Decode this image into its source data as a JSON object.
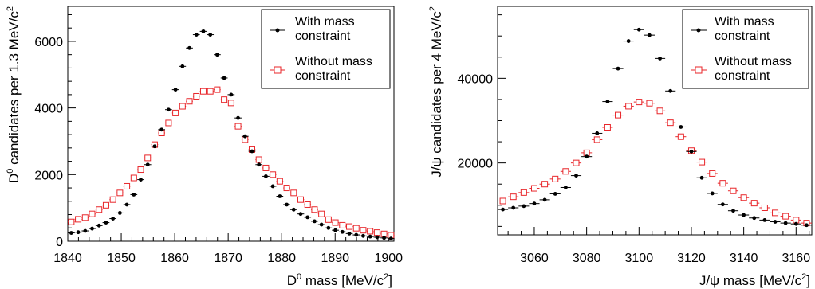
{
  "chart_data": [
    {
      "type": "scatter",
      "xlabel_main": "D",
      "xlabel_sup": "0",
      "xlabel_rest": " mass [MeV/c",
      "xlabel_sup2": "2",
      "xlabel_end": "]",
      "ylabel_main": "D",
      "ylabel_sup": "0",
      "ylabel_rest": " candidates per 1.3 MeV/c",
      "ylabel_sup2": "2",
      "xlim": [
        1840,
        1901
      ],
      "ylim": [
        0,
        7050
      ],
      "xticks": [
        1840,
        1850,
        1860,
        1870,
        1880,
        1890,
        1900
      ],
      "xtick_labels": [
        "1840",
        "1850",
        "1860",
        "1870",
        "1880",
        "1890",
        "1900"
      ],
      "yticks": [
        0,
        2000,
        4000,
        6000
      ],
      "ytick_labels": [
        "0",
        "2000",
        "4000",
        "6000"
      ],
      "legend_placement": "top-right",
      "legend": [
        {
          "line1": "With mass",
          "line2": "constraint"
        },
        {
          "line1": "Without mass",
          "line2": "constraint"
        }
      ],
      "series": [
        {
          "marker": "filled-circle",
          "color": "#000000",
          "x": [
            1840.65,
            1841.95,
            1843.25,
            1844.55,
            1845.85,
            1847.15,
            1848.45,
            1849.75,
            1851.05,
            1852.35,
            1853.65,
            1854.95,
            1856.25,
            1857.55,
            1858.85,
            1860.15,
            1861.45,
            1862.75,
            1864.05,
            1865.35,
            1866.65,
            1867.95,
            1869.25,
            1870.55,
            1871.85,
            1873.15,
            1874.45,
            1875.75,
            1877.05,
            1878.35,
            1879.65,
            1880.95,
            1882.25,
            1883.55,
            1884.85,
            1886.15,
            1887.45,
            1888.75,
            1890.05,
            1891.35,
            1892.65,
            1893.95,
            1895.25,
            1896.55,
            1897.85,
            1899.15,
            1900.45
          ],
          "y": [
            250,
            270,
            310,
            380,
            470,
            560,
            680,
            850,
            1100,
            1400,
            1850,
            2300,
            2850,
            3350,
            3950,
            4550,
            5250,
            5800,
            6200,
            6300,
            6200,
            5600,
            4900,
            4400,
            3700,
            3150,
            2700,
            2300,
            1950,
            1650,
            1350,
            1100,
            950,
            820,
            720,
            600,
            500,
            400,
            330,
            280,
            230,
            190,
            160,
            140,
            120,
            100,
            80
          ]
        },
        {
          "marker": "open-square",
          "color": "#e8262a",
          "x": [
            1840.65,
            1841.95,
            1843.25,
            1844.55,
            1845.85,
            1847.15,
            1848.45,
            1849.75,
            1851.05,
            1852.35,
            1853.65,
            1854.95,
            1856.25,
            1857.55,
            1858.85,
            1860.15,
            1861.45,
            1862.75,
            1864.05,
            1865.35,
            1866.65,
            1867.95,
            1869.25,
            1870.55,
            1871.85,
            1873.15,
            1874.45,
            1875.75,
            1877.05,
            1878.35,
            1879.65,
            1880.95,
            1882.25,
            1883.55,
            1884.85,
            1886.15,
            1887.45,
            1888.75,
            1890.05,
            1891.35,
            1892.65,
            1893.95,
            1895.25,
            1896.55,
            1897.85,
            1899.15,
            1900.45
          ],
          "y": [
            580,
            660,
            710,
            820,
            950,
            1080,
            1250,
            1450,
            1650,
            1900,
            2150,
            2500,
            2900,
            3250,
            3550,
            3850,
            4050,
            4200,
            4350,
            4500,
            4500,
            4550,
            4250,
            4150,
            3450,
            3050,
            2750,
            2450,
            2200,
            2000,
            1800,
            1600,
            1450,
            1250,
            1100,
            950,
            820,
            650,
            560,
            480,
            440,
            390,
            330,
            300,
            260,
            220,
            180
          ]
        }
      ]
    },
    {
      "type": "scatter",
      "xlabel_main": "J/ψ mass [MeV/c",
      "xlabel_sup2": "2",
      "xlabel_end": "]",
      "ylabel_main": "J/ψ candidates per 4 MeV/c",
      "ylabel_sup2": "2",
      "xlim": [
        3046,
        3166
      ],
      "ylim": [
        3000,
        57000
      ],
      "xticks": [
        3060,
        3080,
        3100,
        3120,
        3140,
        3160
      ],
      "xtick_labels": [
        "3060",
        "3080",
        "3100",
        "3120",
        "3140",
        "3160"
      ],
      "yticks": [
        20000,
        40000
      ],
      "ytick_labels": [
        "20000",
        "40000"
      ],
      "legend_placement": "top-right",
      "legend": [
        {
          "line1": "With mass",
          "line2": "constraint"
        },
        {
          "line1": "Without mass",
          "line2": "constraint"
        }
      ],
      "series": [
        {
          "marker": "filled-circle",
          "color": "#000000",
          "x": [
            3048,
            3052,
            3056,
            3060,
            3064,
            3068,
            3072,
            3076,
            3080,
            3084,
            3088,
            3092,
            3096,
            3100,
            3104,
            3108,
            3112,
            3116,
            3120,
            3124,
            3128,
            3132,
            3136,
            3140,
            3144,
            3148,
            3152,
            3156,
            3160,
            3164
          ],
          "y": [
            9000,
            9400,
            9800,
            10400,
            11300,
            12700,
            14200,
            17000,
            21500,
            27000,
            34500,
            42300,
            48800,
            51500,
            50200,
            44700,
            37000,
            28500,
            22700,
            16500,
            12800,
            10200,
            8700,
            7700,
            7000,
            6500,
            6100,
            5800,
            5600,
            5300
          ]
        },
        {
          "marker": "open-square",
          "color": "#e8262a",
          "x": [
            3048,
            3052,
            3056,
            3060,
            3064,
            3068,
            3072,
            3076,
            3080,
            3084,
            3088,
            3092,
            3096,
            3100,
            3104,
            3108,
            3112,
            3116,
            3120,
            3124,
            3128,
            3132,
            3136,
            3140,
            3144,
            3148,
            3152,
            3156,
            3160,
            3164
          ],
          "y": [
            11000,
            12000,
            13000,
            14000,
            15000,
            16200,
            18000,
            20000,
            22400,
            25500,
            28400,
            31300,
            33400,
            34400,
            34100,
            32300,
            29500,
            26200,
            22900,
            20200,
            17500,
            15200,
            13400,
            11800,
            10500,
            9400,
            8200,
            7400,
            6500,
            5800
          ]
        }
      ]
    }
  ]
}
